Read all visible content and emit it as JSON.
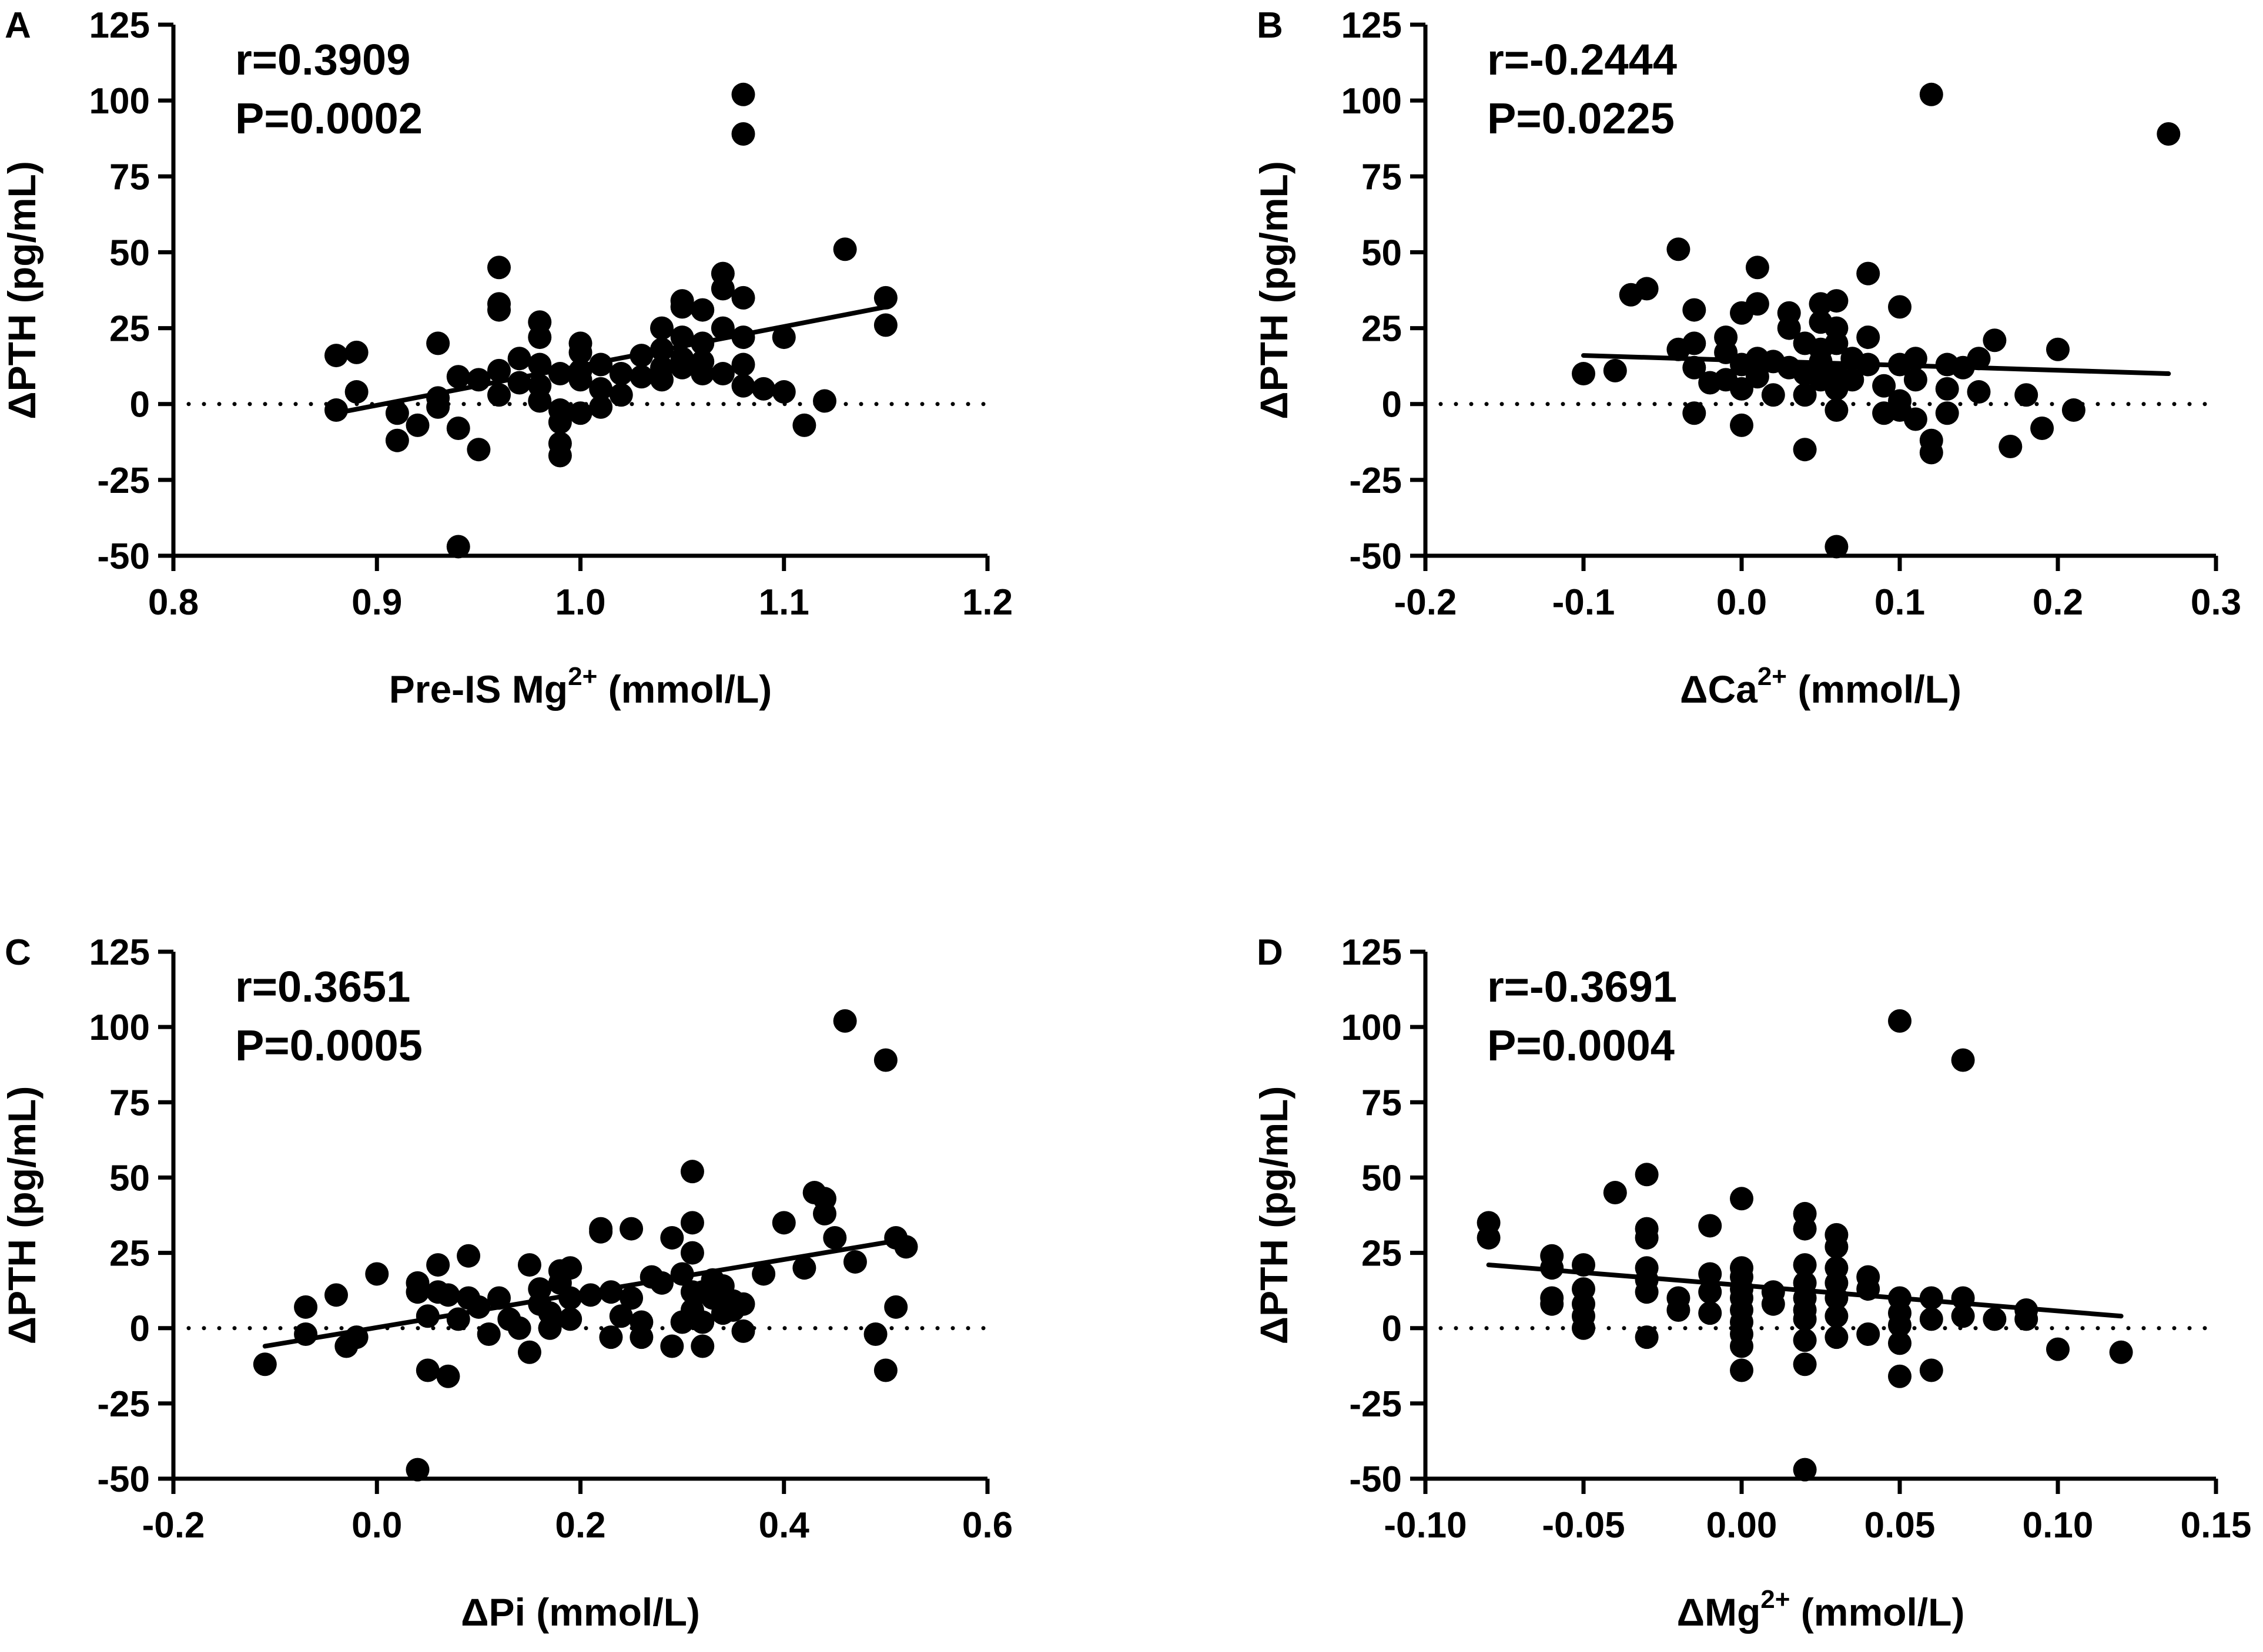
{
  "chart_data": [
    {
      "panel": "A",
      "type": "scatter",
      "xlabel": "Pre-IS Mg",
      "xlabel_sup": "2+",
      "xlabel_unit": " (mmol/L)",
      "ylabel": "ΔPTH (pg/mL)",
      "xlim": [
        0.8,
        1.2
      ],
      "ylim": [
        -50,
        125
      ],
      "xticks": [
        0.8,
        0.9,
        1.0,
        1.1,
        1.2
      ],
      "xtick_labels": [
        "0.8",
        "0.9",
        "1.0",
        "1.1",
        "1.2"
      ],
      "yticks": [
        -50,
        -25,
        0,
        25,
        50,
        75,
        100,
        125
      ],
      "ytick_labels": [
        "-50",
        "-25",
        "0",
        "25",
        "50",
        "75",
        "100",
        "125"
      ],
      "r_text": "r=0.3909",
      "p_text": "P=0.0002",
      "fit_line": [
        [
          0.88,
          -3
        ],
        [
          1.15,
          32
        ]
      ],
      "reference_line_y": 0,
      "points": [
        [
          0.88,
          16
        ],
        [
          0.89,
          17
        ],
        [
          0.89,
          4
        ],
        [
          0.88,
          -2
        ],
        [
          0.91,
          -3
        ],
        [
          0.91,
          -12
        ],
        [
          0.92,
          -7
        ],
        [
          0.93,
          20
        ],
        [
          0.93,
          2
        ],
        [
          0.93,
          -1
        ],
        [
          0.94,
          9
        ],
        [
          0.94,
          -8
        ],
        [
          0.94,
          -47
        ],
        [
          0.95,
          8
        ],
        [
          0.95,
          -15
        ],
        [
          0.96,
          45
        ],
        [
          0.96,
          33
        ],
        [
          0.96,
          31
        ],
        [
          0.96,
          11
        ],
        [
          0.96,
          3
        ],
        [
          0.97,
          15
        ],
        [
          0.97,
          7
        ],
        [
          0.98,
          27
        ],
        [
          0.98,
          22
        ],
        [
          0.98,
          13
        ],
        [
          0.98,
          6
        ],
        [
          0.98,
          1
        ],
        [
          0.99,
          10
        ],
        [
          0.99,
          -2
        ],
        [
          0.99,
          -6
        ],
        [
          0.99,
          -13
        ],
        [
          0.99,
          -17
        ],
        [
          1.0,
          20
        ],
        [
          1.0,
          17
        ],
        [
          1.0,
          11
        ],
        [
          1.0,
          8
        ],
        [
          1.0,
          -3
        ],
        [
          1.01,
          13
        ],
        [
          1.01,
          5
        ],
        [
          1.01,
          -1
        ],
        [
          1.02,
          10
        ],
        [
          1.02,
          3
        ],
        [
          1.03,
          16
        ],
        [
          1.03,
          9
        ],
        [
          1.04,
          25
        ],
        [
          1.04,
          18
        ],
        [
          1.04,
          12
        ],
        [
          1.04,
          8
        ],
        [
          1.05,
          34
        ],
        [
          1.05,
          32
        ],
        [
          1.05,
          22
        ],
        [
          1.05,
          15
        ],
        [
          1.05,
          12
        ],
        [
          1.06,
          31
        ],
        [
          1.06,
          20
        ],
        [
          1.06,
          14
        ],
        [
          1.06,
          10
        ],
        [
          1.07,
          43
        ],
        [
          1.07,
          38
        ],
        [
          1.07,
          25
        ],
        [
          1.07,
          10
        ],
        [
          1.08,
          102
        ],
        [
          1.08,
          89
        ],
        [
          1.08,
          35
        ],
        [
          1.08,
          22
        ],
        [
          1.08,
          13
        ],
        [
          1.08,
          6
        ],
        [
          1.09,
          5
        ],
        [
          1.1,
          22
        ],
        [
          1.1,
          4
        ],
        [
          1.11,
          -7
        ],
        [
          1.12,
          1
        ],
        [
          1.13,
          51
        ],
        [
          1.15,
          35
        ],
        [
          1.15,
          26
        ]
      ]
    },
    {
      "panel": "B",
      "type": "scatter",
      "xlabel": "ΔCa",
      "xlabel_sup": "2+",
      "xlabel_unit": " (mmol/L)",
      "ylabel": "ΔPTH (pg/mL)",
      "xlim": [
        -0.2,
        0.3
      ],
      "ylim": [
        -50,
        125
      ],
      "xticks": [
        -0.2,
        -0.1,
        0.0,
        0.1,
        0.2,
        0.3
      ],
      "xtick_labels": [
        "-0.2",
        "-0.1",
        "0.0",
        "0.1",
        "0.2",
        "0.3"
      ],
      "yticks": [
        -50,
        -25,
        0,
        25,
        50,
        75,
        100,
        125
      ],
      "ytick_labels": [
        "-50",
        "-25",
        "0",
        "25",
        "50",
        "75",
        "100",
        "125"
      ],
      "r_text": "r=-0.2444",
      "p_text": "P=0.0225",
      "fit_line": [
        [
          -0.1,
          16
        ],
        [
          0.27,
          10
        ]
      ],
      "reference_line_y": 0,
      "points": [
        [
          -0.1,
          10
        ],
        [
          -0.08,
          11
        ],
        [
          -0.07,
          36
        ],
        [
          -0.06,
          38
        ],
        [
          -0.04,
          51
        ],
        [
          -0.04,
          18
        ],
        [
          -0.03,
          31
        ],
        [
          -0.03,
          20
        ],
        [
          -0.03,
          12
        ],
        [
          -0.03,
          -3
        ],
        [
          -0.02,
          7
        ],
        [
          -0.01,
          22
        ],
        [
          -0.01,
          17
        ],
        [
          -0.01,
          8
        ],
        [
          0.0,
          30
        ],
        [
          0.0,
          13
        ],
        [
          0.0,
          5
        ],
        [
          0.0,
          -7
        ],
        [
          0.01,
          45
        ],
        [
          0.01,
          33
        ],
        [
          0.01,
          15
        ],
        [
          0.01,
          9
        ],
        [
          0.02,
          14
        ],
        [
          0.02,
          3
        ],
        [
          0.03,
          30
        ],
        [
          0.03,
          25
        ],
        [
          0.03,
          12
        ],
        [
          0.04,
          20
        ],
        [
          0.04,
          10
        ],
        [
          0.04,
          3
        ],
        [
          0.04,
          -15
        ],
        [
          0.05,
          33
        ],
        [
          0.05,
          27
        ],
        [
          0.05,
          18
        ],
        [
          0.05,
          14
        ],
        [
          0.05,
          8
        ],
        [
          0.06,
          34
        ],
        [
          0.06,
          25
        ],
        [
          0.06,
          20
        ],
        [
          0.06,
          10
        ],
        [
          0.06,
          5
        ],
        [
          0.06,
          -2
        ],
        [
          0.06,
          -47
        ],
        [
          0.07,
          15
        ],
        [
          0.07,
          8
        ],
        [
          0.08,
          43
        ],
        [
          0.08,
          22
        ],
        [
          0.08,
          13
        ],
        [
          0.09,
          -3
        ],
        [
          0.09,
          6
        ],
        [
          0.1,
          32
        ],
        [
          0.1,
          13
        ],
        [
          0.1,
          1
        ],
        [
          0.1,
          -2
        ],
        [
          0.11,
          15
        ],
        [
          0.11,
          8
        ],
        [
          0.11,
          -5
        ],
        [
          0.12,
          102
        ],
        [
          0.12,
          -12
        ],
        [
          0.12,
          -16
        ],
        [
          0.13,
          13
        ],
        [
          0.13,
          5
        ],
        [
          0.13,
          -3
        ],
        [
          0.14,
          12
        ],
        [
          0.15,
          15
        ],
        [
          0.15,
          4
        ],
        [
          0.16,
          21
        ],
        [
          0.17,
          -14
        ],
        [
          0.18,
          3
        ],
        [
          0.19,
          -8
        ],
        [
          0.2,
          18
        ],
        [
          0.21,
          -2
        ],
        [
          0.27,
          89
        ]
      ]
    },
    {
      "panel": "C",
      "type": "scatter",
      "xlabel": "ΔPi",
      "xlabel_sup": "",
      "xlabel_unit": " (mmol/L)",
      "ylabel": "ΔPTH (pg/mL)",
      "xlim": [
        -0.2,
        0.6
      ],
      "ylim": [
        -50,
        125
      ],
      "xticks": [
        -0.2,
        0.0,
        0.2,
        0.4,
        0.6
      ],
      "xtick_labels": [
        "-0.2",
        "0.0",
        "0.2",
        "0.4",
        "0.6"
      ],
      "yticks": [
        -50,
        -25,
        0,
        25,
        50,
        75,
        100,
        125
      ],
      "ytick_labels": [
        "-50",
        "-25",
        "0",
        "25",
        "50",
        "75",
        "100",
        "125"
      ],
      "r_text": "r=0.3651",
      "p_text": "P=0.0005",
      "fit_line": [
        [
          -0.11,
          -6
        ],
        [
          0.51,
          29
        ]
      ],
      "reference_line_y": 0,
      "points": [
        [
          -0.11,
          -12
        ],
        [
          -0.07,
          7
        ],
        [
          -0.07,
          -2
        ],
        [
          -0.03,
          -6
        ],
        [
          -0.02,
          -3
        ],
        [
          -0.04,
          11
        ],
        [
          0.0,
          18
        ],
        [
          0.04,
          15
        ],
        [
          0.04,
          12
        ],
        [
          0.04,
          -47
        ],
        [
          0.05,
          4
        ],
        [
          0.05,
          -14
        ],
        [
          0.06,
          21
        ],
        [
          0.06,
          12
        ],
        [
          0.07,
          -16
        ],
        [
          0.07,
          11
        ],
        [
          0.08,
          3
        ],
        [
          0.09,
          24
        ],
        [
          0.09,
          10
        ],
        [
          0.1,
          7
        ],
        [
          0.11,
          -2
        ],
        [
          0.12,
          10
        ],
        [
          0.13,
          3
        ],
        [
          0.14,
          0
        ],
        [
          0.15,
          21
        ],
        [
          0.15,
          -8
        ],
        [
          0.16,
          13
        ],
        [
          0.16,
          8
        ],
        [
          0.17,
          5
        ],
        [
          0.17,
          0
        ],
        [
          0.18,
          19
        ],
        [
          0.18,
          15
        ],
        [
          0.19,
          20
        ],
        [
          0.19,
          10
        ],
        [
          0.19,
          3
        ],
        [
          0.21,
          11
        ],
        [
          0.22,
          33
        ],
        [
          0.22,
          32
        ],
        [
          0.23,
          12
        ],
        [
          0.23,
          -3
        ],
        [
          0.24,
          4
        ],
        [
          0.25,
          33
        ],
        [
          0.25,
          10
        ],
        [
          0.26,
          2
        ],
        [
          0.26,
          -3
        ],
        [
          0.27,
          17
        ],
        [
          0.28,
          15
        ],
        [
          0.29,
          -6
        ],
        [
          0.29,
          30
        ],
        [
          0.3,
          18
        ],
        [
          0.3,
          2
        ],
        [
          0.31,
          52
        ],
        [
          0.31,
          35
        ],
        [
          0.31,
          25
        ],
        [
          0.31,
          12
        ],
        [
          0.31,
          6
        ],
        [
          0.32,
          12
        ],
        [
          0.32,
          2
        ],
        [
          0.32,
          -6
        ],
        [
          0.33,
          16
        ],
        [
          0.33,
          10
        ],
        [
          0.34,
          5
        ],
        [
          0.34,
          14
        ],
        [
          0.35,
          9
        ],
        [
          0.35,
          6
        ],
        [
          0.36,
          8
        ],
        [
          0.36,
          -1
        ],
        [
          0.38,
          18
        ],
        [
          0.4,
          35
        ],
        [
          0.42,
          20
        ],
        [
          0.43,
          45
        ],
        [
          0.44,
          43
        ],
        [
          0.44,
          38
        ],
        [
          0.45,
          30
        ],
        [
          0.46,
          102
        ],
        [
          0.47,
          22
        ],
        [
          0.49,
          -2
        ],
        [
          0.5,
          89
        ],
        [
          0.5,
          -14
        ],
        [
          0.51,
          30
        ],
        [
          0.51,
          7
        ],
        [
          0.52,
          27
        ]
      ]
    },
    {
      "panel": "D",
      "type": "scatter",
      "xlabel": "ΔMg",
      "xlabel_sup": "2+",
      "xlabel_unit": " (mmol/L)",
      "ylabel": "ΔPTH (pg/mL)",
      "xlim": [
        -0.1,
        0.15
      ],
      "ylim": [
        -50,
        125
      ],
      "xticks": [
        -0.1,
        -0.05,
        0.0,
        0.05,
        0.1,
        0.15
      ],
      "xtick_labels": [
        "-0.10",
        "-0.05",
        "0.00",
        "0.05",
        "0.10",
        "0.15"
      ],
      "yticks": [
        -50,
        -25,
        0,
        25,
        50,
        75,
        100,
        125
      ],
      "ytick_labels": [
        "-50",
        "-25",
        "0",
        "25",
        "50",
        "75",
        "100",
        "125"
      ],
      "r_text": "r=-0.3691",
      "p_text": "P=0.0004",
      "fit_line": [
        [
          -0.08,
          21
        ],
        [
          0.12,
          4
        ]
      ],
      "reference_line_y": 0,
      "points": [
        [
          -0.08,
          35
        ],
        [
          -0.08,
          30
        ],
        [
          -0.06,
          24
        ],
        [
          -0.06,
          20
        ],
        [
          -0.06,
          10
        ],
        [
          -0.06,
          8
        ],
        [
          -0.05,
          21
        ],
        [
          -0.05,
          13
        ],
        [
          -0.05,
          8
        ],
        [
          -0.05,
          4
        ],
        [
          -0.05,
          0
        ],
        [
          -0.04,
          45
        ],
        [
          -0.03,
          51
        ],
        [
          -0.03,
          33
        ],
        [
          -0.03,
          30
        ],
        [
          -0.03,
          20
        ],
        [
          -0.03,
          16
        ],
        [
          -0.03,
          12
        ],
        [
          -0.03,
          -3
        ],
        [
          -0.02,
          10
        ],
        [
          -0.02,
          6
        ],
        [
          -0.01,
          18
        ],
        [
          -0.01,
          12
        ],
        [
          -0.01,
          5
        ],
        [
          -0.01,
          34
        ],
        [
          0.0,
          43
        ],
        [
          0.0,
          20
        ],
        [
          0.0,
          17
        ],
        [
          0.0,
          13
        ],
        [
          0.0,
          10
        ],
        [
          0.0,
          6
        ],
        [
          0.0,
          2
        ],
        [
          0.0,
          -2
        ],
        [
          0.0,
          -6
        ],
        [
          0.0,
          -14
        ],
        [
          0.01,
          12
        ],
        [
          0.01,
          8
        ],
        [
          0.02,
          38
        ],
        [
          0.02,
          33
        ],
        [
          0.02,
          21
        ],
        [
          0.02,
          15
        ],
        [
          0.02,
          10
        ],
        [
          0.02,
          6
        ],
        [
          0.02,
          3
        ],
        [
          0.02,
          -4
        ],
        [
          0.02,
          -12
        ],
        [
          0.02,
          -47
        ],
        [
          0.03,
          31
        ],
        [
          0.03,
          27
        ],
        [
          0.03,
          20
        ],
        [
          0.03,
          15
        ],
        [
          0.03,
          10
        ],
        [
          0.03,
          4
        ],
        [
          0.03,
          -3
        ],
        [
          0.04,
          17
        ],
        [
          0.04,
          13
        ],
        [
          0.04,
          -2
        ],
        [
          0.05,
          102
        ],
        [
          0.05,
          10
        ],
        [
          0.05,
          5
        ],
        [
          0.05,
          1
        ],
        [
          0.05,
          -5
        ],
        [
          0.05,
          -16
        ],
        [
          0.06,
          10
        ],
        [
          0.06,
          3
        ],
        [
          0.06,
          -14
        ],
        [
          0.07,
          89
        ],
        [
          0.07,
          10
        ],
        [
          0.07,
          4
        ],
        [
          0.08,
          3
        ],
        [
          0.09,
          6
        ],
        [
          0.09,
          3
        ],
        [
          0.1,
          -7
        ],
        [
          0.12,
          -8
        ]
      ]
    }
  ]
}
